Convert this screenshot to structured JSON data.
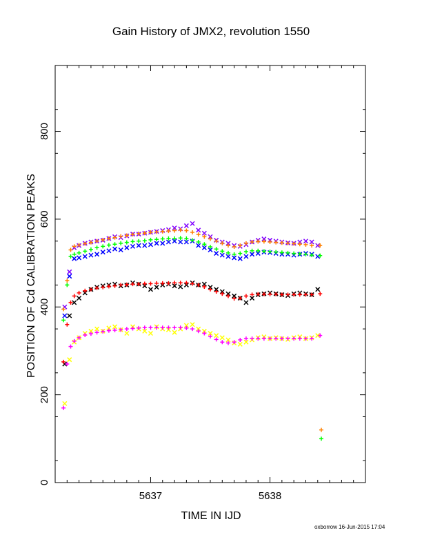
{
  "chart_data": {
    "type": "scatter",
    "title": "Gain History of JMX2, revolution 1550",
    "xlabel": "TIME IN IJD",
    "ylabel": "POSITION OF Cd CALIBRATION PEAKS",
    "xlim": [
      5636.2,
      5638.8
    ],
    "ylim": [
      0,
      950
    ],
    "x_ticks": [
      5637,
      5638
    ],
    "y_ticks": [
      0,
      200,
      400,
      600,
      800
    ],
    "grid": false,
    "colors": {
      "purple": "#8000ff",
      "blue": "#0000ff",
      "orange": "#ff8000",
      "green": "#00ff00",
      "black": "#000000",
      "red": "#ff0000",
      "yellow": "#ffff00",
      "magenta": "#ff00ff"
    },
    "series": [
      {
        "color_key": "purple",
        "marker": "x",
        "x": [
          5636.28,
          5636.32,
          5636.36,
          5636.4,
          5636.45,
          5636.5,
          5636.55,
          5636.6,
          5636.65,
          5636.7,
          5636.75,
          5636.8,
          5636.85,
          5636.9,
          5636.95,
          5637.0,
          5637.05,
          5637.1,
          5637.15,
          5637.2,
          5637.25,
          5637.3,
          5637.35,
          5637.4,
          5637.45,
          5637.5,
          5637.55,
          5637.6,
          5637.65,
          5637.7,
          5637.75,
          5637.8,
          5637.85,
          5637.9,
          5637.95,
          5638.0,
          5638.05,
          5638.1,
          5638.15,
          5638.2,
          5638.25,
          5638.3,
          5638.35,
          5638.4
        ],
        "y": [
          400,
          480,
          535,
          540,
          545,
          548,
          550,
          552,
          556,
          560,
          558,
          562,
          566,
          566,
          568,
          570,
          572,
          574,
          576,
          580,
          578,
          585,
          590,
          575,
          568,
          560,
          552,
          548,
          545,
          540,
          538,
          542,
          548,
          552,
          555,
          552,
          550,
          548,
          546,
          545,
          548,
          550,
          548,
          540
        ]
      },
      {
        "color_key": "blue",
        "marker": "x",
        "x": [
          5636.28,
          5636.32,
          5636.36,
          5636.4,
          5636.45,
          5636.5,
          5636.55,
          5636.6,
          5636.65,
          5636.7,
          5636.75,
          5636.8,
          5636.85,
          5636.9,
          5636.95,
          5637.0,
          5637.05,
          5637.1,
          5637.15,
          5637.2,
          5637.25,
          5637.3,
          5637.35,
          5637.4,
          5637.45,
          5637.5,
          5637.55,
          5637.6,
          5637.65,
          5637.7,
          5637.75,
          5637.8,
          5637.85,
          5637.9,
          5637.95,
          5638.0,
          5638.05,
          5638.1,
          5638.15,
          5638.2,
          5638.25,
          5638.3,
          5638.35,
          5638.4
        ],
        "y": [
          380,
          470,
          510,
          512,
          515,
          518,
          520,
          525,
          528,
          532,
          530,
          535,
          538,
          540,
          540,
          542,
          545,
          545,
          548,
          550,
          548,
          548,
          550,
          540,
          535,
          530,
          522,
          518,
          515,
          512,
          510,
          515,
          520,
          522,
          525,
          524,
          522,
          520,
          520,
          518,
          520,
          522,
          520,
          515
        ]
      },
      {
        "color_key": "orange",
        "marker": "+",
        "x": [
          5636.27,
          5636.3,
          5636.33,
          5636.36,
          5636.4,
          5636.45,
          5636.5,
          5636.55,
          5636.6,
          5636.65,
          5636.7,
          5636.75,
          5636.8,
          5636.85,
          5636.9,
          5636.95,
          5637.0,
          5637.05,
          5637.1,
          5637.15,
          5637.2,
          5637.25,
          5637.3,
          5637.35,
          5637.4,
          5637.45,
          5637.5,
          5637.55,
          5637.6,
          5637.65,
          5637.7,
          5637.75,
          5637.8,
          5637.85,
          5637.9,
          5637.95,
          5638.0,
          5638.05,
          5638.1,
          5638.15,
          5638.2,
          5638.25,
          5638.3,
          5638.35,
          5638.42,
          5638.43
        ],
        "y": [
          395,
          460,
          530,
          538,
          541,
          544,
          547,
          550,
          553,
          556,
          558,
          561,
          563,
          565,
          567,
          568,
          570,
          571,
          572,
          573,
          574,
          575,
          574,
          570,
          565,
          560,
          555,
          550,
          545,
          540,
          537,
          540,
          545,
          548,
          549,
          549,
          548,
          547,
          546,
          545,
          544,
          543,
          542,
          540,
          540,
          120
        ]
      },
      {
        "color_key": "green",
        "marker": "+",
        "x": [
          5636.27,
          5636.3,
          5636.33,
          5636.36,
          5636.4,
          5636.45,
          5636.5,
          5636.55,
          5636.6,
          5636.65,
          5636.7,
          5636.75,
          5636.8,
          5636.85,
          5636.9,
          5636.95,
          5637.0,
          5637.05,
          5637.1,
          5637.15,
          5637.2,
          5637.25,
          5637.3,
          5637.35,
          5637.4,
          5637.45,
          5637.5,
          5637.55,
          5637.6,
          5637.65,
          5637.7,
          5637.75,
          5637.8,
          5637.85,
          5637.9,
          5637.95,
          5638.0,
          5638.05,
          5638.1,
          5638.15,
          5638.2,
          5638.25,
          5638.3,
          5638.35,
          5638.42,
          5638.43
        ],
        "y": [
          370,
          450,
          515,
          520,
          523,
          527,
          531,
          535,
          538,
          541,
          543,
          545,
          547,
          549,
          550,
          551,
          553,
          554,
          555,
          556,
          556,
          557,
          556,
          552,
          548,
          543,
          537,
          532,
          527,
          523,
          520,
          522,
          526,
          528,
          528,
          527,
          526,
          525,
          524,
          523,
          522,
          521,
          520,
          518,
          517,
          100
        ]
      },
      {
        "color_key": "black",
        "marker": "x",
        "x": [
          5636.28,
          5636.32,
          5636.36,
          5636.4,
          5636.45,
          5636.5,
          5636.55,
          5636.6,
          5636.65,
          5636.7,
          5636.75,
          5636.8,
          5636.85,
          5636.9,
          5636.95,
          5637.0,
          5637.05,
          5637.1,
          5637.15,
          5637.2,
          5637.25,
          5637.3,
          5637.35,
          5637.4,
          5637.45,
          5637.5,
          5637.55,
          5637.6,
          5637.65,
          5637.7,
          5637.75,
          5637.8,
          5637.85,
          5637.9,
          5637.95,
          5638.0,
          5638.05,
          5638.1,
          5638.15,
          5638.2,
          5638.25,
          5638.3,
          5638.35,
          5638.4
        ],
        "y": [
          270,
          380,
          410,
          420,
          432,
          440,
          445,
          448,
          450,
          452,
          448,
          450,
          455,
          452,
          448,
          440,
          445,
          450,
          452,
          448,
          446,
          450,
          455,
          450,
          452,
          445,
          440,
          435,
          430,
          425,
          420,
          410,
          420,
          428,
          430,
          432,
          430,
          428,
          426,
          430,
          432,
          430,
          428,
          440
        ]
      },
      {
        "color_key": "red",
        "marker": "+",
        "x": [
          5636.27,
          5636.3,
          5636.33,
          5636.36,
          5636.4,
          5636.45,
          5636.5,
          5636.55,
          5636.6,
          5636.65,
          5636.7,
          5636.75,
          5636.8,
          5636.85,
          5636.9,
          5636.95,
          5637.0,
          5637.05,
          5637.1,
          5637.15,
          5637.2,
          5637.25,
          5637.3,
          5637.35,
          5637.4,
          5637.45,
          5637.5,
          5637.55,
          5637.6,
          5637.65,
          5637.7,
          5637.75,
          5637.8,
          5637.85,
          5637.9,
          5637.95,
          5638.0,
          5638.05,
          5638.1,
          5638.15,
          5638.2,
          5638.25,
          5638.3,
          5638.35,
          5638.42
        ],
        "y": [
          275,
          360,
          410,
          425,
          432,
          437,
          440,
          443,
          445,
          447,
          448,
          450,
          451,
          452,
          452,
          453,
          453,
          454,
          454,
          454,
          455,
          455,
          455,
          453,
          450,
          446,
          440,
          435,
          430,
          425,
          419,
          420,
          425,
          428,
          429,
          429,
          429,
          429,
          428,
          428,
          428,
          428,
          428,
          428,
          430
        ]
      },
      {
        "color_key": "yellow",
        "marker": "x",
        "x": [
          5636.28,
          5636.32,
          5636.36,
          5636.4,
          5636.45,
          5636.5,
          5636.55,
          5636.6,
          5636.65,
          5636.7,
          5636.75,
          5636.8,
          5636.85,
          5636.9,
          5636.95,
          5637.0,
          5637.05,
          5637.1,
          5637.15,
          5637.2,
          5637.25,
          5637.3,
          5637.35,
          5637.4,
          5637.45,
          5637.5,
          5637.55,
          5637.6,
          5637.65,
          5637.7,
          5637.75,
          5637.8,
          5637.85,
          5637.9,
          5637.95,
          5638.0,
          5638.05,
          5638.1,
          5638.15,
          5638.2,
          5638.25,
          5638.3,
          5638.35,
          5638.4
        ],
        "y": [
          180,
          280,
          320,
          330,
          340,
          345,
          350,
          345,
          352,
          355,
          348,
          340,
          355,
          350,
          345,
          340,
          355,
          350,
          348,
          342,
          350,
          358,
          360,
          350,
          345,
          340,
          335,
          330,
          325,
          318,
          315,
          320,
          325,
          330,
          332,
          328,
          330,
          328,
          326,
          330,
          332,
          328,
          330,
          335
        ]
      },
      {
        "color_key": "magenta",
        "marker": "+",
        "x": [
          5636.27,
          5636.3,
          5636.33,
          5636.36,
          5636.4,
          5636.45,
          5636.5,
          5636.55,
          5636.6,
          5636.65,
          5636.7,
          5636.75,
          5636.8,
          5636.85,
          5636.9,
          5636.95,
          5637.0,
          5637.05,
          5637.1,
          5637.15,
          5637.2,
          5637.25,
          5637.3,
          5637.35,
          5637.4,
          5637.45,
          5637.5,
          5637.55,
          5637.6,
          5637.65,
          5637.7,
          5637.75,
          5637.8,
          5637.85,
          5637.9,
          5637.95,
          5638.0,
          5638.05,
          5638.1,
          5638.15,
          5638.2,
          5638.25,
          5638.3,
          5638.35,
          5638.42
        ],
        "y": [
          170,
          270,
          310,
          322,
          330,
          336,
          339,
          342,
          344,
          346,
          347,
          348,
          350,
          351,
          352,
          353,
          353,
          353,
          353,
          353,
          353,
          353,
          352,
          350,
          345,
          340,
          333,
          326,
          320,
          318,
          320,
          325,
          328,
          328,
          328,
          328,
          328,
          328,
          328,
          328,
          328,
          328,
          328,
          328,
          335
        ]
      }
    ]
  },
  "footer": "oxborrow 16-Jun-2015 17:04"
}
